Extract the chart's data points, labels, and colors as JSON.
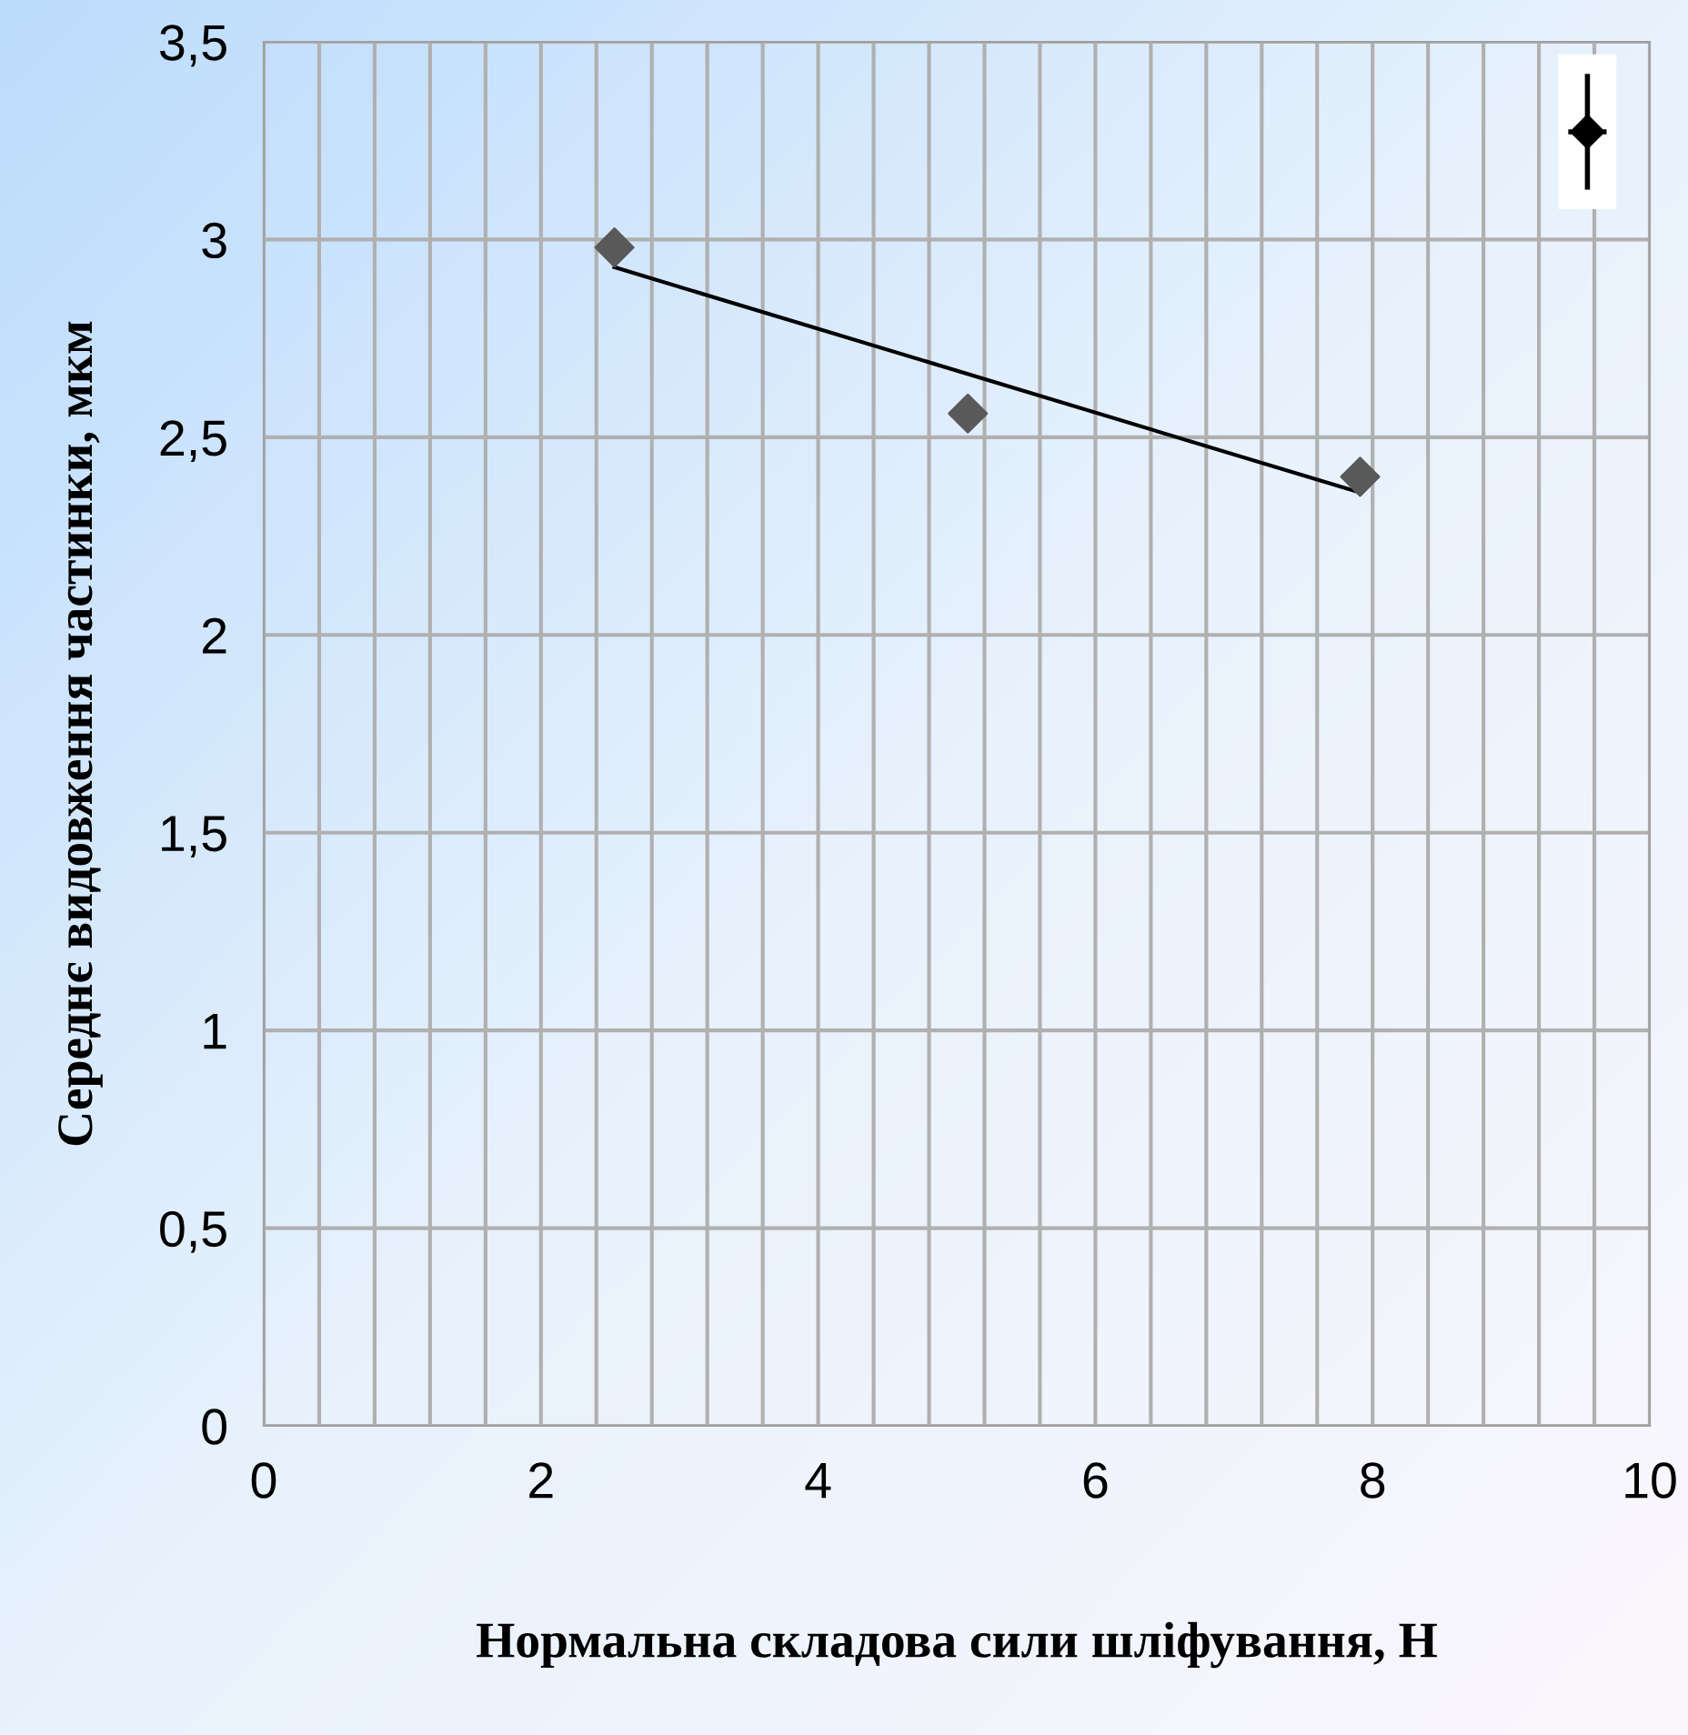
{
  "chart_data": {
    "type": "scatter",
    "xlabel": "Нормальна складова сили шліфування, Н",
    "ylabel": "Середнє видовження частинки, мкм",
    "xlim": [
      0,
      10
    ],
    "ylim": [
      0,
      3.5
    ],
    "xticks": [
      0,
      {
        "value": 0.4,
        "label": null
      },
      {
        "value": 0.8,
        "label": null
      },
      {
        "value": 1.2,
        "label": null
      },
      {
        "value": 1.6,
        "label": null
      },
      2,
      {
        "value": 2.4,
        "label": null
      },
      {
        "value": 2.8,
        "label": null
      },
      {
        "value": 3.2,
        "label": null
      },
      {
        "value": 3.6,
        "label": null
      },
      4,
      {
        "value": 4.4,
        "label": null
      },
      {
        "value": 4.8,
        "label": null
      },
      {
        "value": 5.2,
        "label": null
      },
      {
        "value": 5.6,
        "label": null
      },
      6,
      {
        "value": 6.4,
        "label": null
      },
      {
        "value": 6.8,
        "label": null
      },
      {
        "value": 7.2,
        "label": null
      },
      {
        "value": 7.6,
        "label": null
      },
      8,
      {
        "value": 8.4,
        "label": null
      },
      {
        "value": 8.8,
        "label": null
      },
      {
        "value": 9.2,
        "label": null
      },
      {
        "value": 9.6,
        "label": null
      },
      10
    ],
    "yticks": [
      0,
      {
        "value": 0.5,
        "label": "0,5"
      },
      1,
      {
        "value": 1.5,
        "label": "1,5"
      },
      2,
      {
        "value": 2.5,
        "label": "2,5"
      },
      3,
      {
        "value": 3.5,
        "label": "3,5"
      }
    ],
    "grid": true,
    "series": [
      {
        "x": [
          2.53,
          5.08,
          7.91
        ],
        "values": [
          2.98,
          2.56,
          2.4
        ],
        "color": "#595959",
        "marker": "diamond"
      },
      {
        "type": "line",
        "x": [
          2.53,
          7.91
        ],
        "values": [
          2.93,
          2.36
        ],
        "color": "#000000"
      }
    ]
  }
}
